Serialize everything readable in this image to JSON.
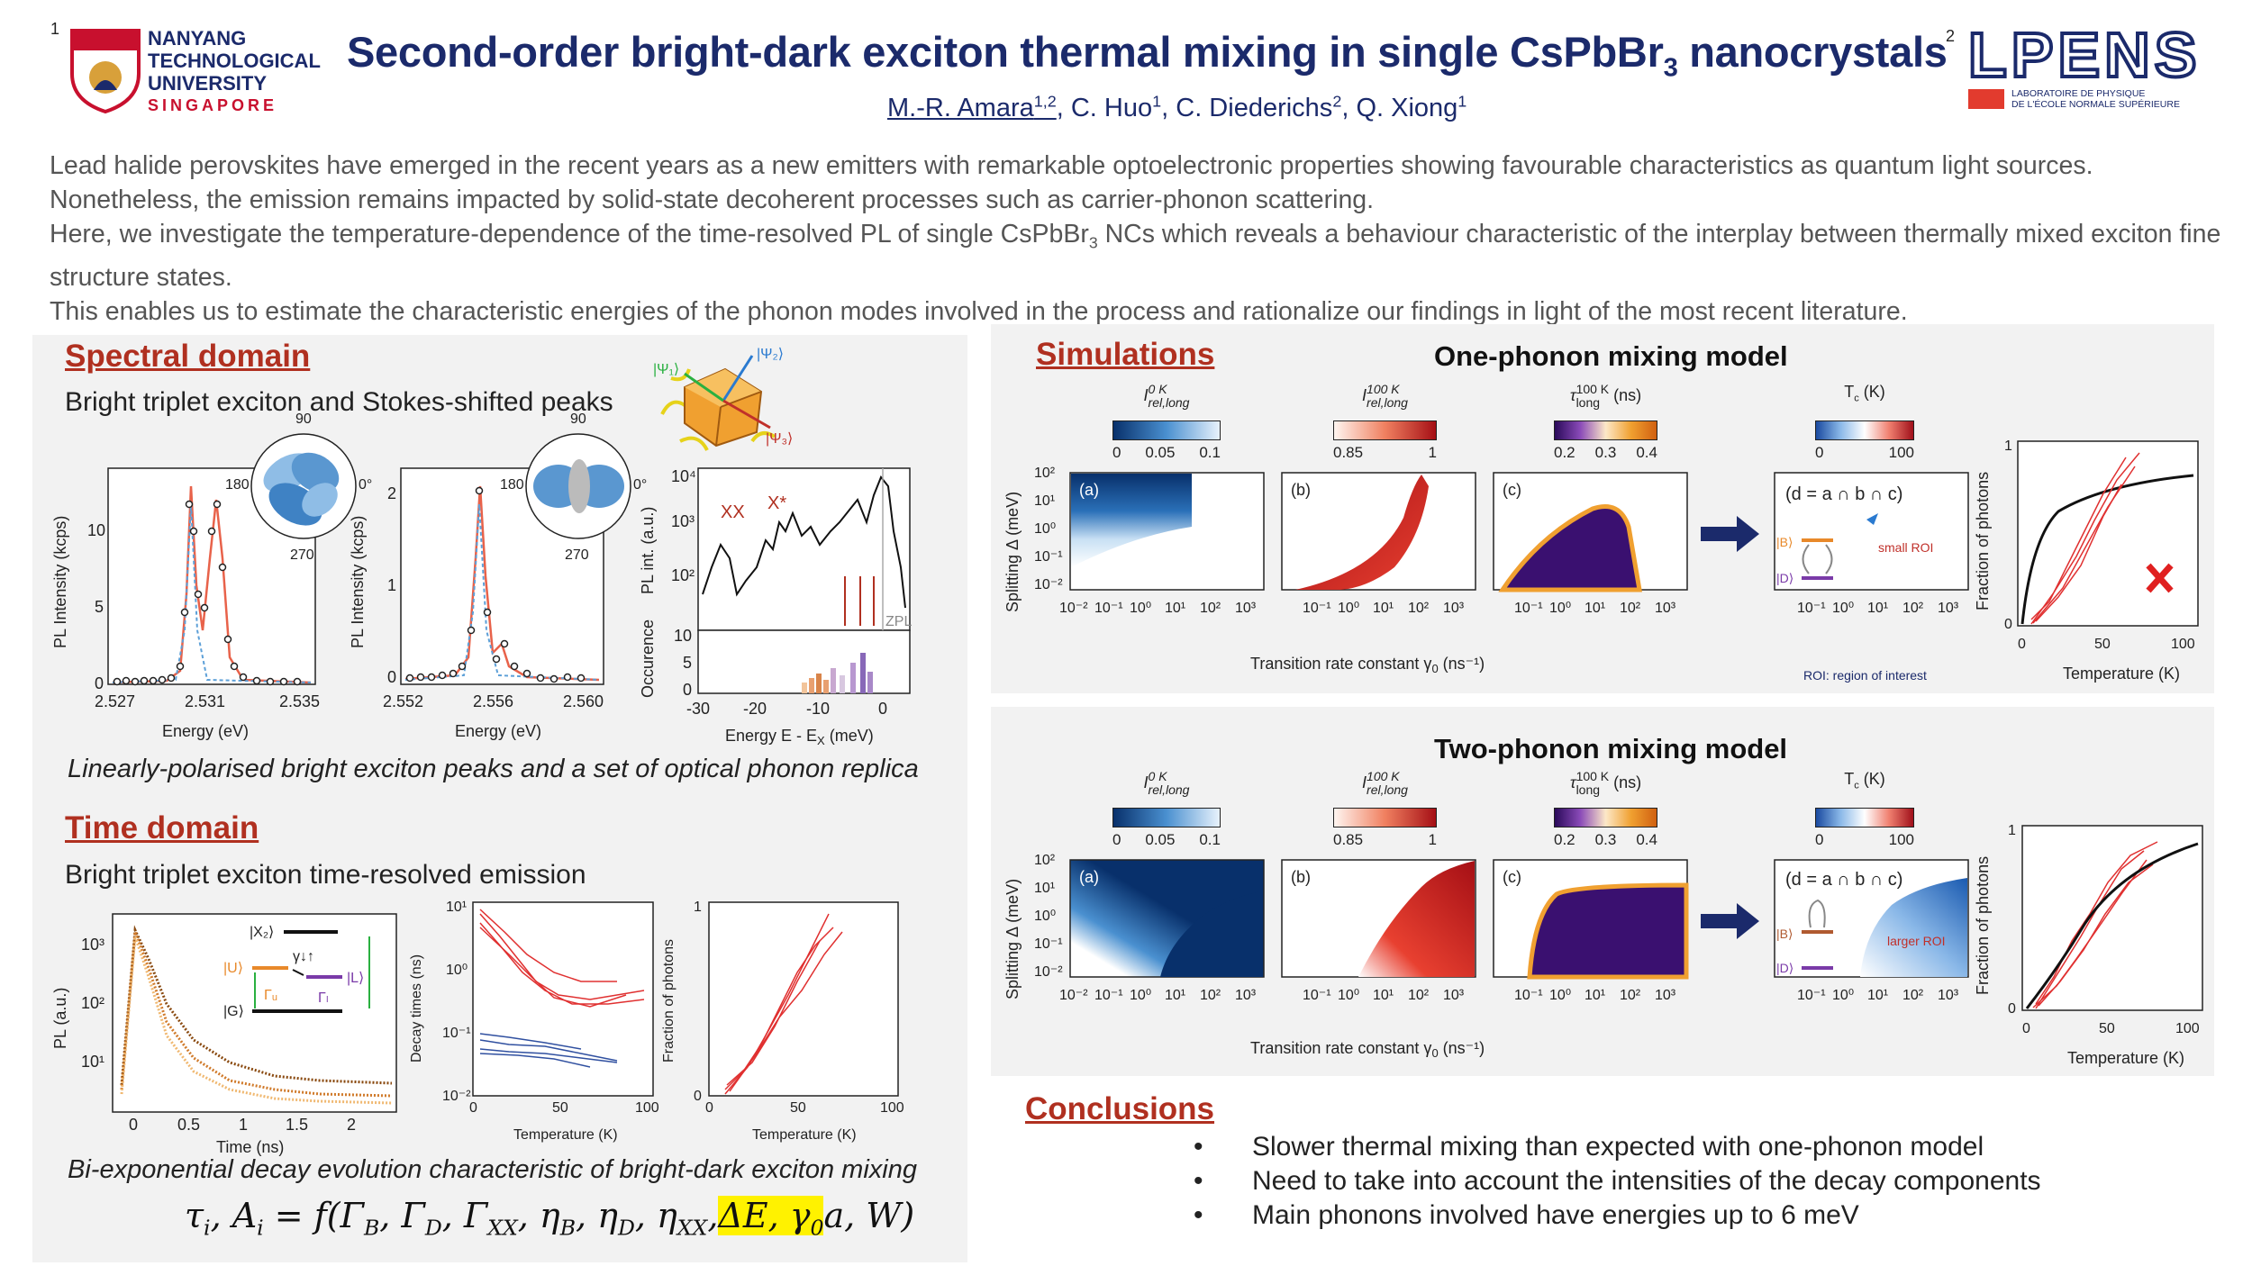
{
  "header": {
    "affil_num_left": "1",
    "ntu_logo": {
      "line1": "NANYANG",
      "line2": "TECHNOLOGICAL",
      "line3": "UNIVERSITY",
      "line4": "SINGAPORE"
    },
    "title_part1": "Second-order bright-dark exciton thermal mixing in single CsPbBr",
    "title_sub": "3",
    "title_part2": " nanocrystals",
    "authors": [
      {
        "name": "M.-R. Amara",
        "sup": "1,2"
      },
      {
        "name": "C. Huo",
        "sup": "1"
      },
      {
        "name": "C. Diederichs",
        "sup": "2"
      },
      {
        "name": "Q. Xiong",
        "sup": "1"
      }
    ],
    "affil_num_right": "2",
    "lpens_logo": {
      "word": "LPENS",
      "line1": "LABORATOIRE DE PHYSIQUE",
      "line2": "DE L'ÉCOLE NORMALE SUPÉRIEURE"
    }
  },
  "intro": {
    "p1": "Lead halide perovskites have emerged in the recent years as a new emitters with remarkable optoelectronic properties showing favourable characteristics as quantum light sources. Nonetheless, the emission remains impacted by solid-state decoherent processes such as carrier-phonon scattering.",
    "p2a": "Here, we investigate the temperature-dependence of the time-resolved PL of single CsPbBr",
    "p2sub": "3",
    "p2b": " NCs which reveals a behaviour characteristic of the interplay between thermally mixed exciton fine structure states.",
    "p3": "This enables us to estimate the characteristic energies of the phonon modes involved in the process and rationalize our findings in light of the most recent literature."
  },
  "spectral": {
    "heading": "Spectral domain",
    "subheading": "Bright triplet exciton and Stokes-shifted peaks",
    "caption": "Linearly-polarised bright exciton peaks and a set of optical phonon replica",
    "plot1": {
      "ylabel": "PL Intensity (kcps)",
      "xlabel": "Energy (eV)",
      "xticks": [
        "2.527",
        "2.531",
        "2.535"
      ],
      "yticks": [
        "0",
        "5",
        "10"
      ]
    },
    "plot2": {
      "ylabel": "PL Intensity (kcps)",
      "xlabel": "Energy (eV)",
      "xticks": [
        "2.552",
        "2.556",
        "2.560"
      ],
      "yticks": [
        "0",
        "1",
        "2"
      ]
    },
    "polar": {
      "top": "90",
      "left": "180",
      "right": "0°",
      "bottom": "270"
    },
    "nc_labels": {
      "psi1": "|Ψ₁⟩",
      "psi2": "|Ψ₂⟩",
      "psi3": "|Ψ₃⟩"
    },
    "plot3": {
      "ylabel_top": "PL int. (a.u.)",
      "ylabel_bottom": "Occurence",
      "xlabel": "Energy E - E",
      "xlabel_sub": "X",
      "xlabel_unit": " (meV)",
      "xticks": [
        "-30",
        "-20",
        "-10",
        "0"
      ],
      "yticks_top": [
        "10²",
        "10³",
        "10⁴"
      ],
      "yticks_bottom": [
        "0",
        "5",
        "10"
      ],
      "label_xx": "XX",
      "label_xstar": "X*",
      "label_zpl": "ZPL"
    }
  },
  "time": {
    "heading": "Time domain",
    "subheading": "Bright triplet exciton time-resolved emission",
    "caption": "Bi-exponential decay evolution characteristic of bright-dark exciton mixing",
    "plot1": {
      "ylabel": "PL (a.u.)",
      "xlabel": "Time (ns)",
      "xticks": [
        "0",
        "0.5",
        "1",
        "1.5",
        "2"
      ],
      "yticks": [
        "10¹",
        "10²",
        "10³"
      ],
      "level_x2": "|X₂⟩",
      "level_u": "|U⟩",
      "level_l": "|L⟩",
      "level_g": "|G⟩",
      "gamma_u": "Γᵤ",
      "gamma_l": "Γₗ",
      "gamma_ul": "γ↓↑"
    },
    "plot2": {
      "ylabel": "Decay times (ns)",
      "xlabel": "Temperature (K)",
      "xticks": [
        "0",
        "50",
        "100"
      ],
      "yticks": [
        "10⁻²",
        "10⁻¹",
        "10⁰",
        "10¹"
      ]
    },
    "plot3": {
      "ylabel": "Fraction of photons",
      "xlabel": "Temperature (K)",
      "xticks": [
        "0",
        "50",
        "100"
      ],
      "yticks": [
        "0",
        "1"
      ]
    }
  },
  "formula": {
    "lhs": "τ",
    "lhs_sub1": "i",
    "mid": ", A",
    "lhs_sub2": "i",
    "eq": " = f(Γ",
    "b": "B",
    "c1": ", Γ",
    "d": "D",
    "c2": ", Γ",
    "xx": "XX",
    "c3": ", η",
    "b2": "B",
    "c4": ", η",
    "d2": "D",
    "c5": ", η",
    "xx2": "XX",
    "c6": ",",
    "highlight": "ΔE, γ",
    "hl_sub": "0",
    "tail": "a, W)"
  },
  "simulations": {
    "heading": "Simulations",
    "one_phonon": {
      "title": "One-phonon mixing model",
      "cb1": {
        "label": "I",
        "sup": "0 K",
        "sub": "rel,long",
        "ticks": [
          "0",
          "0.05",
          "0.1"
        ]
      },
      "cb2": {
        "label": "I",
        "sup": "100 K",
        "sub": "rel,long",
        "ticks": [
          "0.85",
          "1"
        ]
      },
      "cb3": {
        "label": "τ",
        "sup": "100 K",
        "sub": "long",
        "unit": "(ns)",
        "ticks": [
          "0.2",
          "0.3",
          "0.4"
        ]
      },
      "cb4": {
        "label": "T",
        "sub": "c",
        "unit": "(K)",
        "ticks": [
          "0",
          "100"
        ]
      },
      "panels": [
        "(a)",
        "(b)",
        "(c)"
      ],
      "ylabel": "Splitting Δ  (meV)",
      "xlabel_main": "Transition rate constant γ",
      "xlabel_sub": "0",
      "xlabel_unit": " (ns⁻¹)",
      "xticks": [
        "10⁻²",
        "10⁻¹",
        "10⁰",
        "10¹",
        "10²",
        "10³"
      ],
      "yticks": [
        "10⁻²",
        "10⁻¹",
        "10⁰",
        "10¹",
        "10²"
      ],
      "roi_formula": "(d = a ∩ b ∩ c)",
      "roi_label": "small ROI",
      "roi_b": "|B⟩",
      "roi_d": "|D⟩",
      "roi_xticks": [
        "10⁻¹",
        "10⁰",
        "10¹",
        "10²",
        "10³"
      ],
      "roi_note": "ROI: region of interest",
      "frac": {
        "ylabel": "Fraction of photons",
        "xlabel": "Temperature (K)",
        "xticks": [
          "0",
          "50",
          "100"
        ],
        "yticks": [
          "0",
          "1"
        ]
      }
    },
    "two_phonon": {
      "title": "Two-phonon mixing model",
      "cb1": {
        "label": "I",
        "sup": "0 K",
        "sub": "rel,long",
        "ticks": [
          "0",
          "0.05",
          "0.1"
        ]
      },
      "cb2": {
        "label": "I",
        "sup": "100 K",
        "sub": "rel,long",
        "ticks": [
          "0.85",
          "1"
        ]
      },
      "cb3": {
        "label": "τ",
        "sup": "100 K",
        "sub": "long",
        "unit": "(ns)",
        "ticks": [
          "0.2",
          "0.3",
          "0.4"
        ]
      },
      "cb4": {
        "label": "T",
        "sub": "c",
        "unit": "(K)",
        "ticks": [
          "0",
          "100"
        ]
      },
      "panels": [
        "(a)",
        "(b)",
        "(c)"
      ],
      "ylabel": "Splitting Δ  (meV)",
      "xlabel_main": "Transition rate constant γ",
      "xlabel_sub": "0",
      "xlabel_unit": " (ns⁻¹)",
      "xticks": [
        "10⁻²",
        "10⁻¹",
        "10⁰",
        "10¹",
        "10²",
        "10³"
      ],
      "yticks": [
        "10⁻²",
        "10⁻¹",
        "10⁰",
        "10¹",
        "10²"
      ],
      "roi_formula": "(d = a ∩ b ∩ c)",
      "roi_label": "larger ROI",
      "roi_b": "|B⟩",
      "roi_d": "|D⟩",
      "roi_xticks": [
        "10⁻¹",
        "10⁰",
        "10¹",
        "10²",
        "10³"
      ],
      "frac": {
        "ylabel": "Fraction of photons",
        "xlabel": "Temperature (K)",
        "xticks": [
          "0",
          "50",
          "100"
        ],
        "yticks": [
          "0",
          "1"
        ]
      }
    }
  },
  "conclusions": {
    "heading": "Conclusions",
    "items": [
      "Slower thermal mixing than expected with one-phonon model",
      "Need to take into account the intensities of the decay components",
      "Main phonons involved have energies up to 6 meV"
    ]
  },
  "colors": {
    "title": "#1b2a6b",
    "section": "#b03020",
    "panel": "#f2f2f2",
    "lpens": "#1b2a6b",
    "lpens_red": "#e23b2e"
  }
}
